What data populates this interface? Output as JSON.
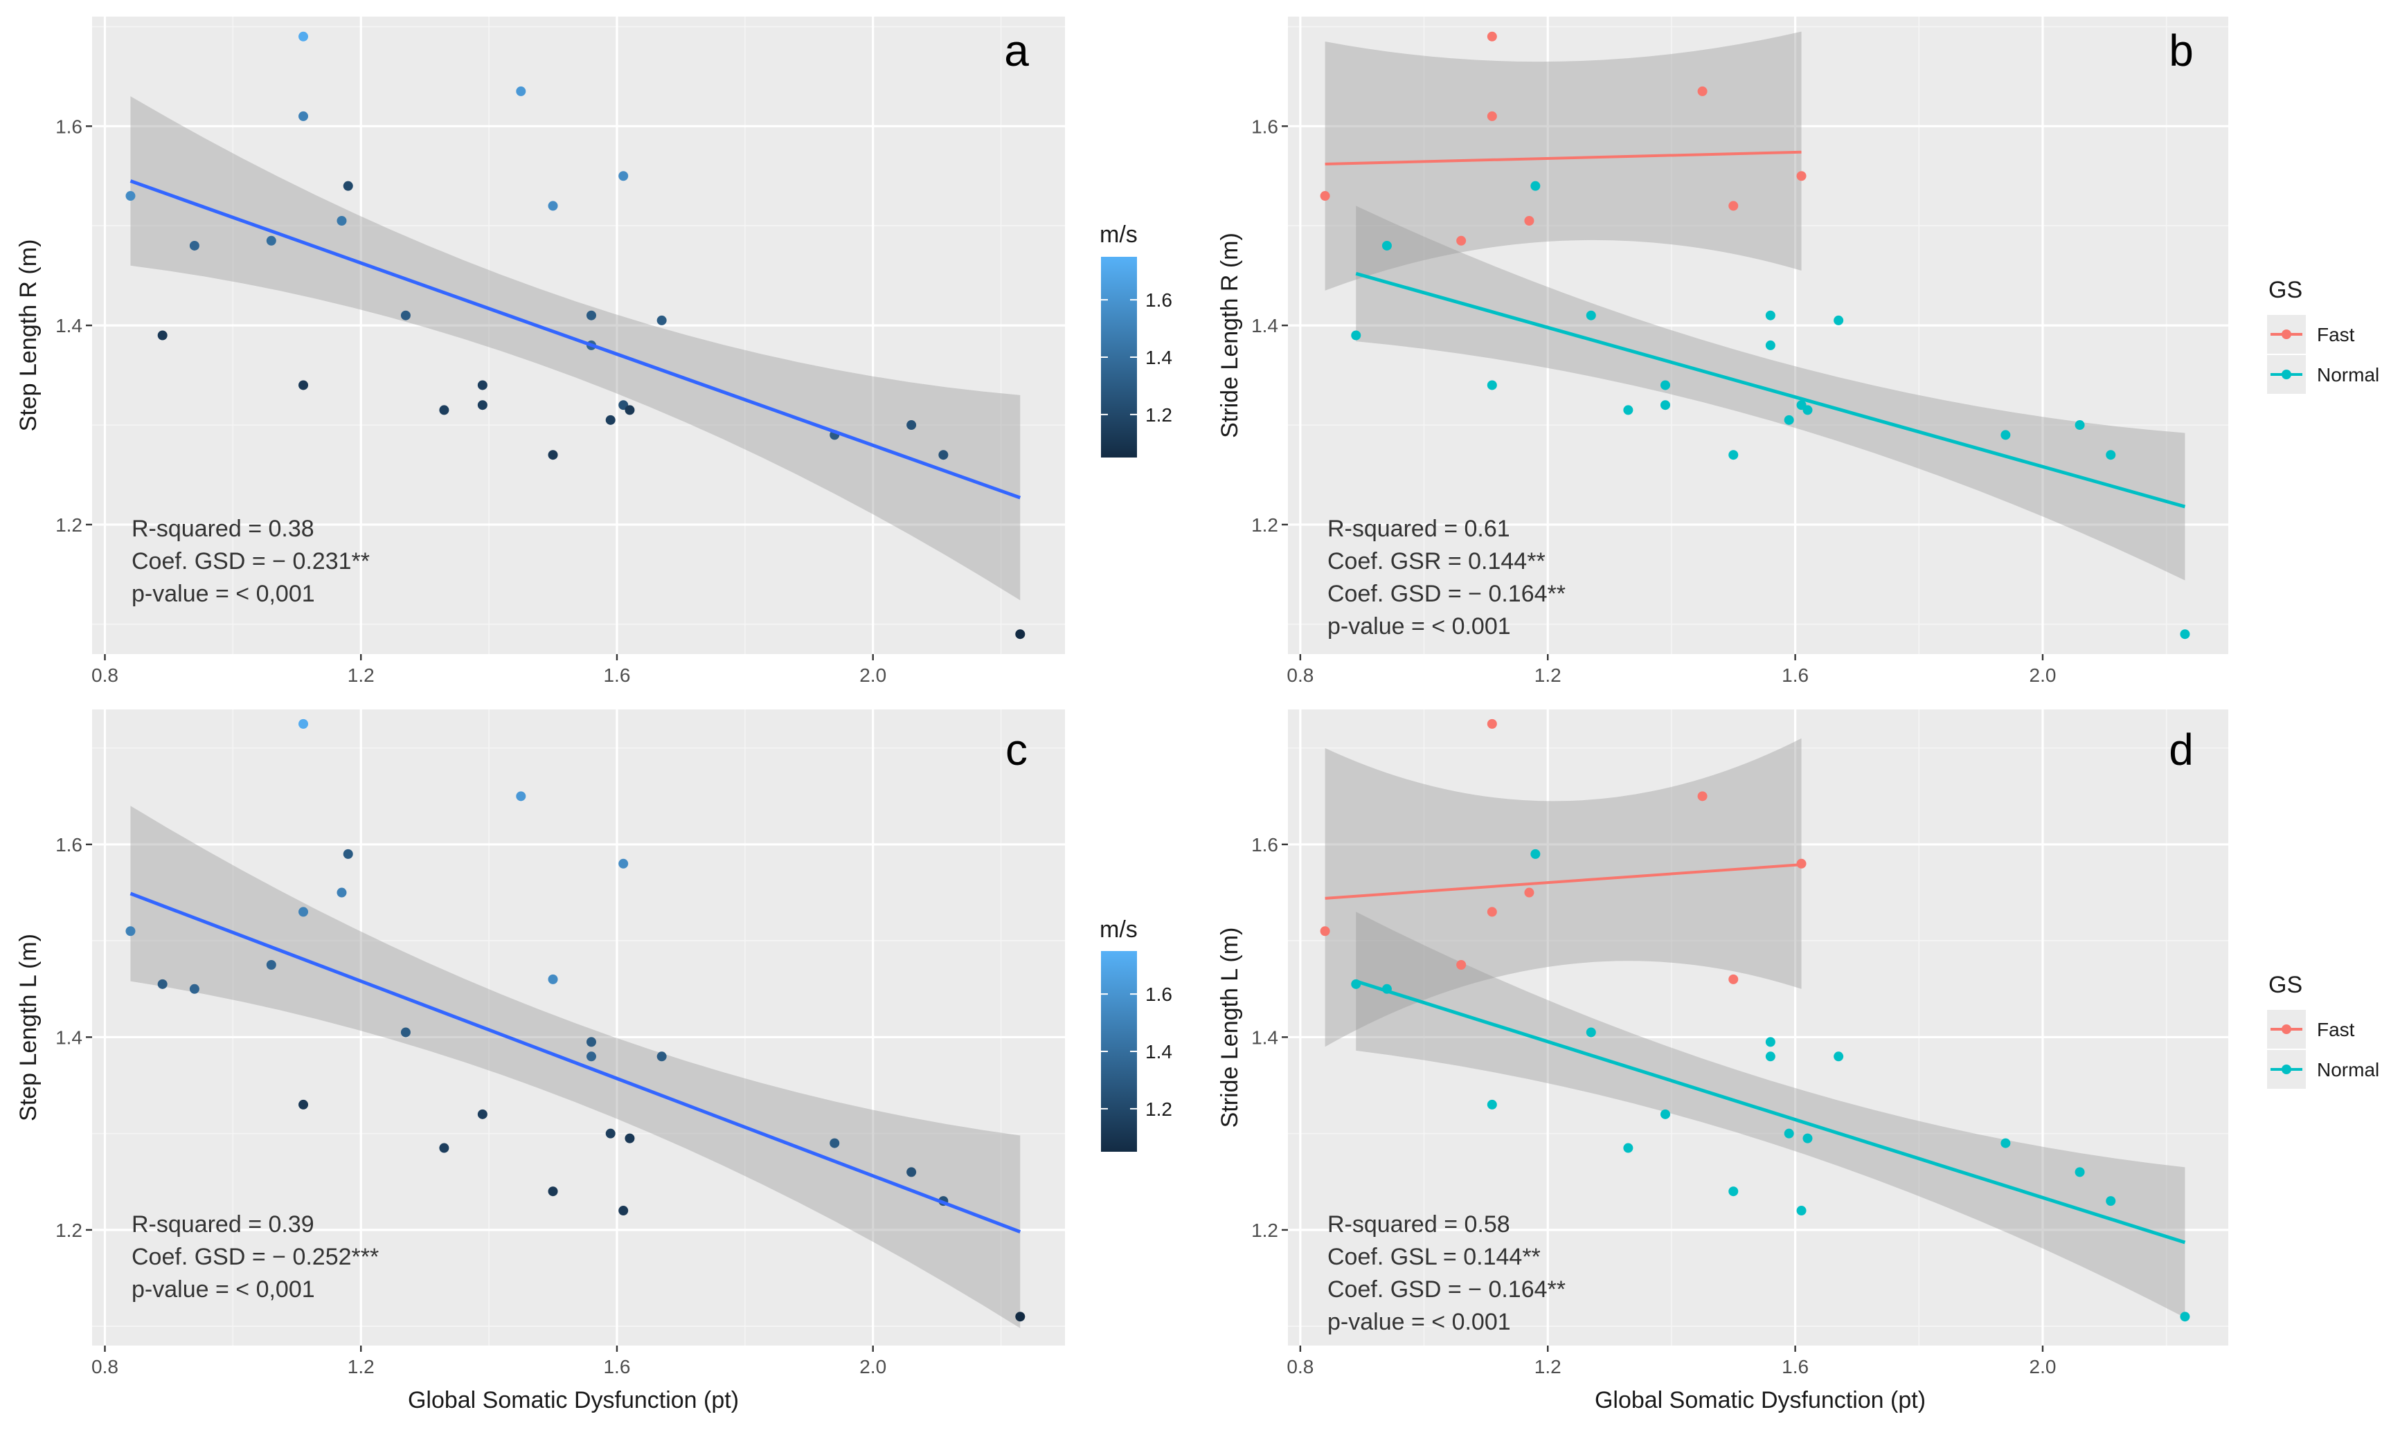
{
  "figure": {
    "x_label": "Global Somatic Dysfunction (pt)",
    "colorbar_title": "m/s",
    "legend_title": "GS"
  },
  "colors": {
    "panel_bg": "#ebebeb",
    "ribbon": "#999999",
    "lm_line": "#3366ff",
    "fast": "#f8766d",
    "normal": "#00bfc4",
    "speed_low": "#132b43",
    "speed_high": "#56b1f7"
  },
  "chart_data": [
    {
      "id": "a",
      "type": "scatter",
      "tag": "a",
      "ylabel": "Step Length R (m)",
      "xlabel": "",
      "xlim": [
        0.78,
        2.3
      ],
      "ylim": [
        1.07,
        1.71
      ],
      "x_ticks": [
        0.8,
        1.2,
        1.6,
        2.0
      ],
      "x_tick_labels": [
        "0.8",
        "1.2",
        "1.6",
        "2.0"
      ],
      "y_ticks": [
        1.2,
        1.4,
        1.6
      ],
      "y_tick_labels": [
        "1.2",
        "1.4",
        "1.6"
      ],
      "color_by": "speed",
      "points": [
        {
          "x": 0.84,
          "y": 1.53,
          "speed": 1.55
        },
        {
          "x": 0.89,
          "y": 1.39,
          "speed": 1.12
        },
        {
          "x": 0.94,
          "y": 1.48,
          "speed": 1.35
        },
        {
          "x": 1.06,
          "y": 1.485,
          "speed": 1.4
        },
        {
          "x": 1.11,
          "y": 1.69,
          "speed": 1.72
        },
        {
          "x": 1.11,
          "y": 1.61,
          "speed": 1.5
        },
        {
          "x": 1.11,
          "y": 1.34,
          "speed": 1.12
        },
        {
          "x": 1.17,
          "y": 1.505,
          "speed": 1.45
        },
        {
          "x": 1.18,
          "y": 1.54,
          "speed": 1.2
        },
        {
          "x": 1.27,
          "y": 1.41,
          "speed": 1.3
        },
        {
          "x": 1.33,
          "y": 1.315,
          "speed": 1.15
        },
        {
          "x": 1.39,
          "y": 1.34,
          "speed": 1.15
        },
        {
          "x": 1.39,
          "y": 1.32,
          "speed": 1.15
        },
        {
          "x": 1.45,
          "y": 1.635,
          "speed": 1.62
        },
        {
          "x": 1.5,
          "y": 1.52,
          "speed": 1.55
        },
        {
          "x": 1.5,
          "y": 1.27,
          "speed": 1.12
        },
        {
          "x": 1.56,
          "y": 1.41,
          "speed": 1.3
        },
        {
          "x": 1.56,
          "y": 1.38,
          "speed": 1.35
        },
        {
          "x": 1.59,
          "y": 1.305,
          "speed": 1.15
        },
        {
          "x": 1.61,
          "y": 1.55,
          "speed": 1.55
        },
        {
          "x": 1.61,
          "y": 1.32,
          "speed": 1.25
        },
        {
          "x": 1.62,
          "y": 1.315,
          "speed": 1.12
        },
        {
          "x": 1.67,
          "y": 1.405,
          "speed": 1.3
        },
        {
          "x": 1.94,
          "y": 1.29,
          "speed": 1.3
        },
        {
          "x": 2.06,
          "y": 1.3,
          "speed": 1.25
        },
        {
          "x": 2.11,
          "y": 1.27,
          "speed": 1.25
        },
        {
          "x": 2.23,
          "y": 1.09,
          "speed": 1.05
        }
      ],
      "fits": [
        {
          "name": "lm",
          "color_key": "lm_line",
          "x": [
            0.84,
            2.23
          ],
          "y": [
            1.545,
            1.227
          ],
          "se_lower": [
            1.462,
            1.125
          ],
          "se_upper": [
            1.63,
            1.33
          ],
          "line_width": 5
        }
      ],
      "annotations": [
        "R-squared = 0.38",
        "Coef. GSD = − 0.231**",
        "p-value = < 0,001"
      ],
      "colorbar": {
        "ticks": [
          1.2,
          1.4,
          1.6
        ],
        "tick_labels": [
          "1.2",
          "1.4",
          "1.6"
        ],
        "range": [
          1.05,
          1.75
        ]
      }
    },
    {
      "id": "b",
      "type": "scatter",
      "tag": "b",
      "ylabel": "Stride Length R (m)",
      "xlabel": "",
      "xlim": [
        0.78,
        2.3
      ],
      "ylim": [
        1.07,
        1.71
      ],
      "x_ticks": [
        0.8,
        1.2,
        1.6,
        2.0
      ],
      "x_tick_labels": [
        "0.8",
        "1.2",
        "1.6",
        "2.0"
      ],
      "y_ticks": [
        1.2,
        1.4,
        1.6
      ],
      "y_tick_labels": [
        "1.2",
        "1.4",
        "1.6"
      ],
      "color_by": "group",
      "series": [
        {
          "name": "Fast",
          "color_key": "fast",
          "points": [
            {
              "x": 0.84,
              "y": 1.53
            },
            {
              "x": 1.06,
              "y": 1.485
            },
            {
              "x": 1.11,
              "y": 1.69
            },
            {
              "x": 1.11,
              "y": 1.61
            },
            {
              "x": 1.17,
              "y": 1.505
            },
            {
              "x": 1.45,
              "y": 1.635
            },
            {
              "x": 1.5,
              "y": 1.52
            },
            {
              "x": 1.61,
              "y": 1.55
            }
          ]
        },
        {
          "name": "Normal",
          "color_key": "normal",
          "points": [
            {
              "x": 0.89,
              "y": 1.39
            },
            {
              "x": 0.94,
              "y": 1.48
            },
            {
              "x": 1.11,
              "y": 1.34
            },
            {
              "x": 1.18,
              "y": 1.54
            },
            {
              "x": 1.27,
              "y": 1.41
            },
            {
              "x": 1.33,
              "y": 1.315
            },
            {
              "x": 1.39,
              "y": 1.34
            },
            {
              "x": 1.39,
              "y": 1.32
            },
            {
              "x": 1.5,
              "y": 1.27
            },
            {
              "x": 1.56,
              "y": 1.41
            },
            {
              "x": 1.56,
              "y": 1.38
            },
            {
              "x": 1.59,
              "y": 1.305
            },
            {
              "x": 1.61,
              "y": 1.32
            },
            {
              "x": 1.62,
              "y": 1.315
            },
            {
              "x": 1.67,
              "y": 1.405
            },
            {
              "x": 1.94,
              "y": 1.29
            },
            {
              "x": 2.06,
              "y": 1.3
            },
            {
              "x": 2.11,
              "y": 1.27
            },
            {
              "x": 2.23,
              "y": 1.09
            }
          ]
        }
      ],
      "fits": [
        {
          "name": "Fast",
          "color_key": "fast",
          "x": [
            0.84,
            1.61
          ],
          "y": [
            1.562,
            1.574
          ],
          "se_lower": [
            1.435,
            1.455
          ],
          "se_upper": [
            1.685,
            1.695
          ],
          "se_waist": [
            1.485,
            1.665
          ],
          "line_width": 4
        },
        {
          "name": "Normal",
          "color_key": "normal",
          "x": [
            0.89,
            2.23
          ],
          "y": [
            1.452,
            1.218
          ],
          "se_lower": [
            1.385,
            1.148
          ],
          "se_upper": [
            1.52,
            1.292
          ],
          "line_width": 5
        }
      ],
      "annotations": [
        "R-squared = 0.61",
        "Coef. GSR = 0.144**",
        "Coef. GSD = − 0.164**",
        "p-value = < 0.001"
      ],
      "legend": {
        "title": "GS",
        "entries": [
          "Fast",
          "Normal"
        ]
      }
    },
    {
      "id": "c",
      "type": "scatter",
      "tag": "c",
      "ylabel": "Step Length L (m)",
      "xlabel": "Global Somatic Dysfunction (pt)",
      "xlim": [
        0.78,
        2.3
      ],
      "ylim": [
        1.08,
        1.74
      ],
      "x_ticks": [
        0.8,
        1.2,
        1.6,
        2.0
      ],
      "x_tick_labels": [
        "0.8",
        "1.2",
        "1.6",
        "2.0"
      ],
      "y_ticks": [
        1.2,
        1.4,
        1.6
      ],
      "y_tick_labels": [
        "1.2",
        "1.4",
        "1.6"
      ],
      "color_by": "speed",
      "points": [
        {
          "x": 0.84,
          "y": 1.51,
          "speed": 1.5
        },
        {
          "x": 0.89,
          "y": 1.455,
          "speed": 1.3
        },
        {
          "x": 0.94,
          "y": 1.45,
          "speed": 1.35
        },
        {
          "x": 1.06,
          "y": 1.475,
          "speed": 1.35
        },
        {
          "x": 1.11,
          "y": 1.725,
          "speed": 1.72
        },
        {
          "x": 1.11,
          "y": 1.53,
          "speed": 1.5
        },
        {
          "x": 1.11,
          "y": 1.33,
          "speed": 1.12
        },
        {
          "x": 1.17,
          "y": 1.55,
          "speed": 1.5
        },
        {
          "x": 1.18,
          "y": 1.59,
          "speed": 1.3
        },
        {
          "x": 1.27,
          "y": 1.405,
          "speed": 1.3
        },
        {
          "x": 1.33,
          "y": 1.285,
          "speed": 1.15
        },
        {
          "x": 1.39,
          "y": 1.32,
          "speed": 1.15
        },
        {
          "x": 1.45,
          "y": 1.65,
          "speed": 1.62
        },
        {
          "x": 1.5,
          "y": 1.46,
          "speed": 1.55
        },
        {
          "x": 1.5,
          "y": 1.24,
          "speed": 1.12
        },
        {
          "x": 1.56,
          "y": 1.395,
          "speed": 1.3
        },
        {
          "x": 1.56,
          "y": 1.38,
          "speed": 1.35
        },
        {
          "x": 1.59,
          "y": 1.3,
          "speed": 1.15
        },
        {
          "x": 1.61,
          "y": 1.58,
          "speed": 1.55
        },
        {
          "x": 1.61,
          "y": 1.22,
          "speed": 1.12
        },
        {
          "x": 1.62,
          "y": 1.295,
          "speed": 1.12
        },
        {
          "x": 1.67,
          "y": 1.38,
          "speed": 1.3
        },
        {
          "x": 1.94,
          "y": 1.29,
          "speed": 1.3
        },
        {
          "x": 2.06,
          "y": 1.26,
          "speed": 1.25
        },
        {
          "x": 2.11,
          "y": 1.23,
          "speed": 1.25
        },
        {
          "x": 2.23,
          "y": 1.11,
          "speed": 1.05
        }
      ],
      "fits": [
        {
          "name": "lm",
          "color_key": "lm_line",
          "x": [
            0.84,
            2.23
          ],
          "y": [
            1.549,
            1.198
          ],
          "se_lower": [
            1.46,
            1.1
          ],
          "se_upper": [
            1.64,
            1.298
          ],
          "line_width": 5
        }
      ],
      "annotations": [
        "R-squared = 0.39",
        "Coef. GSD = − 0.252***",
        "p-value = < 0,001"
      ],
      "colorbar": {
        "ticks": [
          1.2,
          1.4,
          1.6
        ],
        "tick_labels": [
          "1.2",
          "1.4",
          "1.6"
        ],
        "range": [
          1.05,
          1.75
        ]
      }
    },
    {
      "id": "d",
      "type": "scatter",
      "tag": "d",
      "ylabel": "Stride Length L (m)",
      "xlabel": "Global Somatic Dysfunction (pt)",
      "xlim": [
        0.78,
        2.3
      ],
      "ylim": [
        1.08,
        1.74
      ],
      "x_ticks": [
        0.8,
        1.2,
        1.6,
        2.0
      ],
      "x_tick_labels": [
        "0.8",
        "1.2",
        "1.6",
        "2.0"
      ],
      "y_ticks": [
        1.2,
        1.4,
        1.6
      ],
      "y_tick_labels": [
        "1.2",
        "1.4",
        "1.6"
      ],
      "color_by": "group",
      "series": [
        {
          "name": "Fast",
          "color_key": "fast",
          "points": [
            {
              "x": 0.84,
              "y": 1.51
            },
            {
              "x": 1.06,
              "y": 1.475
            },
            {
              "x": 1.11,
              "y": 1.725
            },
            {
              "x": 1.11,
              "y": 1.53
            },
            {
              "x": 1.17,
              "y": 1.55
            },
            {
              "x": 1.45,
              "y": 1.65
            },
            {
              "x": 1.5,
              "y": 1.46
            },
            {
              "x": 1.61,
              "y": 1.58
            }
          ]
        },
        {
          "name": "Normal",
          "color_key": "normal",
          "points": [
            {
              "x": 0.89,
              "y": 1.455
            },
            {
              "x": 0.94,
              "y": 1.45
            },
            {
              "x": 1.11,
              "y": 1.33
            },
            {
              "x": 1.18,
              "y": 1.59
            },
            {
              "x": 1.27,
              "y": 1.405
            },
            {
              "x": 1.33,
              "y": 1.285
            },
            {
              "x": 1.39,
              "y": 1.32
            },
            {
              "x": 1.5,
              "y": 1.24
            },
            {
              "x": 1.56,
              "y": 1.395
            },
            {
              "x": 1.56,
              "y": 1.38
            },
            {
              "x": 1.59,
              "y": 1.3
            },
            {
              "x": 1.61,
              "y": 1.22
            },
            {
              "x": 1.62,
              "y": 1.295
            },
            {
              "x": 1.67,
              "y": 1.38
            },
            {
              "x": 1.94,
              "y": 1.29
            },
            {
              "x": 2.06,
              "y": 1.26
            },
            {
              "x": 2.11,
              "y": 1.23
            },
            {
              "x": 2.23,
              "y": 1.11
            }
          ]
        }
      ],
      "fits": [
        {
          "name": "Fast",
          "color_key": "fast",
          "x": [
            0.84,
            1.61
          ],
          "y": [
            1.544,
            1.579
          ],
          "se_lower": [
            1.39,
            1.45
          ],
          "se_upper": [
            1.7,
            1.71
          ],
          "se_waist": [
            1.475,
            1.645
          ],
          "line_width": 4
        },
        {
          "name": "Normal",
          "color_key": "normal",
          "x": [
            0.89,
            2.23
          ],
          "y": [
            1.458,
            1.187
          ],
          "se_lower": [
            1.385,
            1.11
          ],
          "se_upper": [
            1.53,
            1.265
          ],
          "line_width": 5
        }
      ],
      "annotations": [
        "R-squared = 0.58",
        "Coef. GSL = 0.144**",
        "Coef. GSD = − 0.164**",
        "p-value = < 0.001"
      ],
      "legend": {
        "title": "GS",
        "entries": [
          "Fast",
          "Normal"
        ]
      }
    }
  ]
}
